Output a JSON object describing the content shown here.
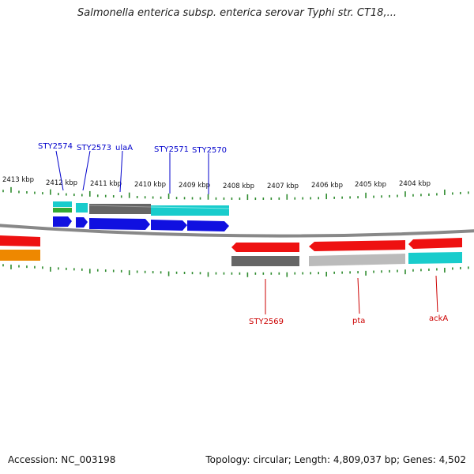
{
  "title": "Salmonella enterica subsp. enterica serovar Typhi str. CT18,...",
  "accession_label": "Accession: NC_003198",
  "summary_label": "Topology: circular; Length: 4,809,037 bp; Genes: 4,502",
  "scale_labels": [
    "2413 kbp",
    "2412 kbp",
    "2411 kbp",
    "2410 kbp",
    "2409 kbp",
    "2408 kbp",
    "2407 kbp",
    "2406 kbp",
    "2405 kbp",
    "2404 kbp"
  ],
  "top_genes": [
    {
      "label": "STY2574"
    },
    {
      "label": "STY2573"
    },
    {
      "label": "ulaA"
    },
    {
      "label": "STY2571"
    },
    {
      "label": "STY2570"
    }
  ],
  "bottom_genes": [
    {
      "label": "STY2569"
    },
    {
      "label": "pta"
    },
    {
      "label": "ackA"
    }
  ],
  "colors": {
    "forward_label": "#0000cc",
    "reverse_label": "#cc0000",
    "forward_gene": "#1010e0",
    "reverse_gene": "#ee1111",
    "backbone": "#888888",
    "tick": "#2e8b2e",
    "cyan": "#19cccc",
    "gray_dark": "#666666",
    "gray_light": "#bbbbbb",
    "green": "#33aa33",
    "orange": "#ee8800"
  }
}
